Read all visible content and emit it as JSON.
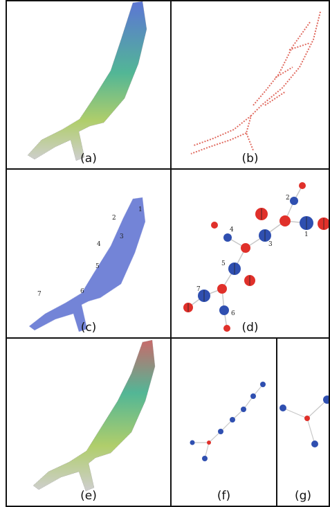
{
  "panels": [
    {
      "caption": "(a)"
    },
    {
      "caption": "(b)"
    },
    {
      "caption": "(c)"
    },
    {
      "caption": "(d)"
    },
    {
      "caption": "(e)"
    },
    {
      "caption": "(f)"
    },
    {
      "caption": "(g)"
    }
  ],
  "panel_c_labels": [
    "2",
    "1",
    "4",
    "3",
    "5",
    "7",
    "6"
  ],
  "panel_d_labels": [
    "2",
    "4",
    "3",
    "1",
    "5",
    "7",
    "6"
  ],
  "colors": {
    "red": "#e0302a",
    "blue": "#2f4fb0",
    "mesh_blue": "#5a6fd0",
    "mesh_red": "#d9544f"
  }
}
